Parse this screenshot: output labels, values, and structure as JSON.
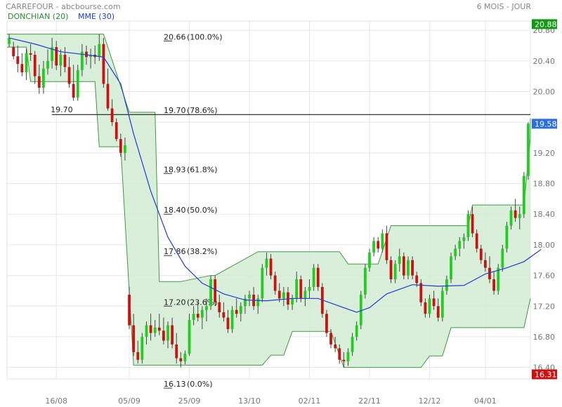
{
  "header": {
    "title": "CARREFOUR - abcbourse.com",
    "period": "6 MOIS - JOUR"
  },
  "legend": {
    "donchian": "DONCHIAN (20)",
    "mme": "MME (30)"
  },
  "chart_data": {
    "type": "candlestick",
    "x_ticks": [
      "16/08",
      "05/09",
      "25/09",
      "13/10",
      "02/11",
      "22/11",
      "12/12",
      "04/01"
    ],
    "y_ticks": [
      "16.40",
      "16.80",
      "17.20",
      "17.60",
      "18.00",
      "18.40",
      "18.80",
      "19.20",
      "19.60",
      "20.00",
      "20.40",
      "20.80"
    ],
    "ylim": [
      16.25,
      20.92
    ],
    "grid": true,
    "price_tags": [
      {
        "label": "20.88",
        "value": 20.88,
        "color": "#119911"
      },
      {
        "label": "19.58",
        "value": 19.58,
        "color": "#2a6fdb"
      },
      {
        "label": "16.31",
        "value": 16.31,
        "color": "#cc1111"
      }
    ],
    "reference_line": {
      "label": "19.70",
      "value": 19.7
    },
    "fibonacci": [
      {
        "label": "20.66",
        "pct": "(100.0%)",
        "value": 20.66
      },
      {
        "label": "19.70",
        "pct": "(78.6%)",
        "value": 19.7
      },
      {
        "label": "18.93",
        "pct": "(61.8%)",
        "value": 18.93
      },
      {
        "label": "18.40",
        "pct": "(50.0%)",
        "value": 18.4
      },
      {
        "label": "17.86",
        "pct": "(38.2%)",
        "value": 17.86
      },
      {
        "label": "17.20",
        "pct": "(23.6%)",
        "value": 17.2
      },
      {
        "label": "16.13",
        "pct": "(0.0%)",
        "value": 16.13
      }
    ],
    "colors": {
      "up": "#22cc22",
      "down": "#cc1111",
      "mme": "#1e3cd2",
      "band_fill": "#d3ecd3",
      "band_edge": "#3f9a3f"
    },
    "candles": [
      [
        20.62,
        20.75,
        20.58,
        20.7
      ],
      [
        20.58,
        20.65,
        20.42,
        20.46
      ],
      [
        20.46,
        20.6,
        20.25,
        20.36
      ],
      [
        20.36,
        20.5,
        20.2,
        20.25
      ],
      [
        20.25,
        20.56,
        20.15,
        20.5
      ],
      [
        20.5,
        20.62,
        20.4,
        20.48
      ],
      [
        20.48,
        20.53,
        20.1,
        20.2
      ],
      [
        20.2,
        20.35,
        19.97,
        20.05
      ],
      [
        20.05,
        20.4,
        19.97,
        20.3
      ],
      [
        20.3,
        20.55,
        20.22,
        20.4
      ],
      [
        20.4,
        20.7,
        20.3,
        20.58
      ],
      [
        20.58,
        20.66,
        20.28,
        20.34
      ],
      [
        20.34,
        20.55,
        20.2,
        20.48
      ],
      [
        20.48,
        20.58,
        20.25,
        20.32
      ],
      [
        20.32,
        20.45,
        20.05,
        20.1
      ],
      [
        20.1,
        20.35,
        19.88,
        19.92
      ],
      [
        19.92,
        20.35,
        19.88,
        20.28
      ],
      [
        20.28,
        20.62,
        20.2,
        20.52
      ],
      [
        20.52,
        20.6,
        20.35,
        20.45
      ],
      [
        20.45,
        20.56,
        20.3,
        20.48
      ],
      [
        20.48,
        20.6,
        20.36,
        20.45
      ],
      [
        20.45,
        20.75,
        20.4,
        20.62
      ],
      [
        20.62,
        20.7,
        20.05,
        20.1
      ],
      [
        20.1,
        20.3,
        19.75,
        19.78
      ],
      [
        19.78,
        19.9,
        19.55,
        19.6
      ],
      [
        19.6,
        19.65,
        19.35,
        19.38
      ],
      [
        19.38,
        19.45,
        19.15,
        19.2
      ],
      [
        19.2,
        19.4,
        19.1,
        19.3
      ],
      [
        17.35,
        17.45,
        16.9,
        16.95
      ],
      [
        16.95,
        17.1,
        16.55,
        16.6
      ],
      [
        16.6,
        16.75,
        16.45,
        16.5
      ],
      [
        16.5,
        16.85,
        16.45,
        16.8
      ],
      [
        16.8,
        17.0,
        16.7,
        16.95
      ],
      [
        16.95,
        17.1,
        16.75,
        16.85
      ],
      [
        16.85,
        17.02,
        16.8,
        16.92
      ],
      [
        16.92,
        17.1,
        16.82,
        16.88
      ],
      [
        16.88,
        17.05,
        16.7,
        16.75
      ],
      [
        16.75,
        17.0,
        16.65,
        16.95
      ],
      [
        16.95,
        17.05,
        16.65,
        16.7
      ],
      [
        16.7,
        16.85,
        16.45,
        16.52
      ],
      [
        16.52,
        16.6,
        16.4,
        16.48
      ],
      [
        16.48,
        16.62,
        16.44,
        16.58
      ],
      [
        16.58,
        17.1,
        16.55,
        17.02
      ],
      [
        17.02,
        17.2,
        16.95,
        17.1
      ],
      [
        17.1,
        17.25,
        17.0,
        17.05
      ],
      [
        17.05,
        17.2,
        16.9,
        17.15
      ],
      [
        17.15,
        17.3,
        17.0,
        17.2
      ],
      [
        17.2,
        17.6,
        17.15,
        17.55
      ],
      [
        17.55,
        17.6,
        17.2,
        17.25
      ],
      [
        17.25,
        17.35,
        17.05,
        17.12
      ],
      [
        17.12,
        17.25,
        17.0,
        17.05
      ],
      [
        17.05,
        17.15,
        16.85,
        16.9
      ],
      [
        16.9,
        17.2,
        16.85,
        17.15
      ],
      [
        17.15,
        17.3,
        17.05,
        17.1
      ],
      [
        17.1,
        17.25,
        17.0,
        17.2
      ],
      [
        17.2,
        17.35,
        17.1,
        17.3
      ],
      [
        17.3,
        17.4,
        17.2,
        17.35
      ],
      [
        17.35,
        17.45,
        17.15,
        17.2
      ],
      [
        17.2,
        17.35,
        17.1,
        17.3
      ],
      [
        17.3,
        17.75,
        17.25,
        17.7
      ],
      [
        17.7,
        17.9,
        17.6,
        17.82
      ],
      [
        17.82,
        17.88,
        17.55,
        17.6
      ],
      [
        17.6,
        17.65,
        17.35,
        17.4
      ],
      [
        17.4,
        17.5,
        17.25,
        17.3
      ],
      [
        17.3,
        17.45,
        17.2,
        17.38
      ],
      [
        17.38,
        17.45,
        17.15,
        17.22
      ],
      [
        17.22,
        17.35,
        17.15,
        17.3
      ],
      [
        17.3,
        17.65,
        17.25,
        17.55
      ],
      [
        17.55,
        17.6,
        17.25,
        17.3
      ],
      [
        17.3,
        17.45,
        17.2,
        17.4
      ],
      [
        17.4,
        17.55,
        17.3,
        17.45
      ],
      [
        17.45,
        17.75,
        17.4,
        17.7
      ],
      [
        17.7,
        17.75,
        17.4,
        17.45
      ],
      [
        17.45,
        17.5,
        17.05,
        17.1
      ],
      [
        17.1,
        17.15,
        16.8,
        16.85
      ],
      [
        16.85,
        16.9,
        16.65,
        16.7
      ],
      [
        16.7,
        16.8,
        16.6,
        16.65
      ],
      [
        16.65,
        16.7,
        16.45,
        16.5
      ],
      [
        16.5,
        16.6,
        16.4,
        16.48
      ],
      [
        16.48,
        16.65,
        16.42,
        16.6
      ],
      [
        16.6,
        16.85,
        16.55,
        16.8
      ],
      [
        16.8,
        17.0,
        16.75,
        16.95
      ],
      [
        16.95,
        17.4,
        16.9,
        17.35
      ],
      [
        17.35,
        17.75,
        17.3,
        17.7
      ],
      [
        17.7,
        17.95,
        17.65,
        17.9
      ],
      [
        17.9,
        18.1,
        17.85,
        18.05
      ],
      [
        18.05,
        18.1,
        17.9,
        17.95
      ],
      [
        17.95,
        18.2,
        17.9,
        18.15
      ],
      [
        18.15,
        18.25,
        17.75,
        17.8
      ],
      [
        17.8,
        17.85,
        17.5,
        17.55
      ],
      [
        17.55,
        17.8,
        17.5,
        17.75
      ],
      [
        17.75,
        17.95,
        17.65,
        17.85
      ],
      [
        17.85,
        17.9,
        17.55,
        17.6
      ],
      [
        17.6,
        17.85,
        17.55,
        17.8
      ],
      [
        17.8,
        17.85,
        17.55,
        17.6
      ],
      [
        17.6,
        17.65,
        17.45,
        17.5
      ],
      [
        17.5,
        17.55,
        17.2,
        17.25
      ],
      [
        17.25,
        17.3,
        17.05,
        17.1
      ],
      [
        17.1,
        17.35,
        17.05,
        17.3
      ],
      [
        17.3,
        17.4,
        17.15,
        17.2
      ],
      [
        17.2,
        17.3,
        17.0,
        17.05
      ],
      [
        17.05,
        17.45,
        17.0,
        17.4
      ],
      [
        17.4,
        17.6,
        17.35,
        17.55
      ],
      [
        17.55,
        17.9,
        17.5,
        17.85
      ],
      [
        17.85,
        18.0,
        17.8,
        17.95
      ],
      [
        17.95,
        18.1,
        17.85,
        18.05
      ],
      [
        18.05,
        18.15,
        17.95,
        18.1
      ],
      [
        18.1,
        18.45,
        18.05,
        18.4
      ],
      [
        18.4,
        18.5,
        18.1,
        18.15
      ],
      [
        18.15,
        18.2,
        17.9,
        17.95
      ],
      [
        17.95,
        18.0,
        17.75,
        17.8
      ],
      [
        17.8,
        17.9,
        17.65,
        17.7
      ],
      [
        17.7,
        17.85,
        17.5,
        17.55
      ],
      [
        17.55,
        17.65,
        17.35,
        17.4
      ],
      [
        17.4,
        17.75,
        17.35,
        17.7
      ],
      [
        17.7,
        18.0,
        17.65,
        17.95
      ],
      [
        17.95,
        18.3,
        17.9,
        18.25
      ],
      [
        18.25,
        18.5,
        18.2,
        18.45
      ],
      [
        18.45,
        18.6,
        18.3,
        18.35
      ],
      [
        18.35,
        18.5,
        18.2,
        18.4
      ],
      [
        18.4,
        18.95,
        18.35,
        18.9
      ],
      [
        18.9,
        19.6,
        18.85,
        19.58
      ]
    ],
    "mme": [
      [
        0,
        20.7
      ],
      [
        6,
        20.62
      ],
      [
        12,
        20.52
      ],
      [
        18,
        20.48
      ],
      [
        22,
        20.45
      ],
      [
        26,
        20.1
      ],
      [
        29,
        19.45
      ],
      [
        33,
        18.7
      ],
      [
        37,
        18.1
      ],
      [
        41,
        17.72
      ],
      [
        45,
        17.5
      ],
      [
        50,
        17.36
      ],
      [
        55,
        17.28
      ],
      [
        60,
        17.27
      ],
      [
        66,
        17.3
      ],
      [
        72,
        17.3
      ],
      [
        77,
        17.2
      ],
      [
        81,
        17.12
      ],
      [
        84,
        17.18
      ],
      [
        88,
        17.36
      ],
      [
        94,
        17.48
      ],
      [
        100,
        17.46
      ],
      [
        106,
        17.47
      ],
      [
        111,
        17.62
      ],
      [
        116,
        17.7
      ],
      [
        120,
        17.78
      ],
      [
        124,
        17.94
      ]
    ],
    "donchian_upper": [
      [
        -1,
        20.75
      ],
      [
        2,
        20.75
      ],
      [
        22,
        20.75
      ],
      [
        28,
        19.73
      ],
      [
        31,
        19.73
      ],
      [
        34,
        19.73
      ],
      [
        35,
        17.52
      ],
      [
        40,
        17.52
      ],
      [
        47,
        17.6
      ],
      [
        48,
        17.6
      ],
      [
        58,
        17.91
      ],
      [
        65,
        17.91
      ],
      [
        77,
        17.91
      ],
      [
        79,
        17.75
      ],
      [
        86,
        17.75
      ],
      [
        89,
        18.25
      ],
      [
        107,
        18.25
      ],
      [
        108,
        18.52
      ],
      [
        115,
        18.52
      ],
      [
        120,
        18.52
      ],
      [
        124,
        19.4
      ],
      [
        125,
        19.65
      ]
    ],
    "donchian_lower": [
      [
        -1,
        20.58
      ],
      [
        4,
        20.58
      ],
      [
        5,
        20.13
      ],
      [
        20,
        20.13
      ],
      [
        21,
        19.28
      ],
      [
        26,
        19.28
      ],
      [
        29,
        16.43
      ],
      [
        49,
        16.43
      ],
      [
        59,
        16.43
      ],
      [
        61,
        16.56
      ],
      [
        64,
        16.56
      ],
      [
        66,
        16.87
      ],
      [
        72,
        16.87
      ],
      [
        75,
        16.87
      ],
      [
        78,
        16.4
      ],
      [
        96,
        16.4
      ],
      [
        98,
        16.55
      ],
      [
        101,
        16.55
      ],
      [
        103,
        16.92
      ],
      [
        118,
        16.92
      ],
      [
        120,
        16.92
      ],
      [
        125,
        17.3
      ]
    ]
  }
}
